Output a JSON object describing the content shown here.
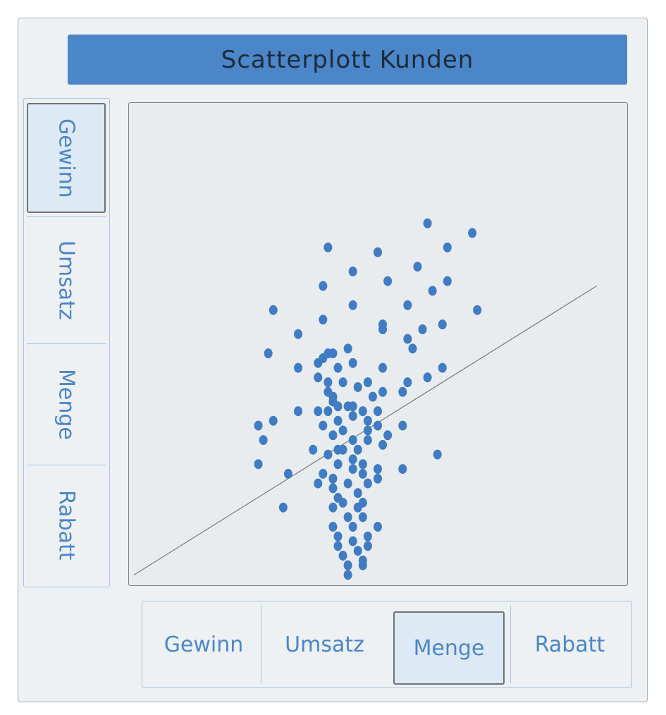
{
  "title": "Scatterplott Kunden",
  "y_selector": {
    "options": [
      "Gewinn",
      "Umsatz",
      "Menge",
      "Rabatt"
    ],
    "selected": "Gewinn"
  },
  "x_selector": {
    "options": [
      "Gewinn",
      "Umsatz",
      "Menge",
      "Rabatt"
    ],
    "selected": "Menge"
  },
  "colors": {
    "accent": "#4a86c8",
    "point": "#3f7cc4",
    "selected_bg": "#dde9f4",
    "plot_bg": "#e9ecef",
    "trend_line": "#7a7a7a"
  },
  "chart_data": {
    "type": "scatter",
    "title": "",
    "xlabel": "Menge",
    "ylabel": "Gewinn",
    "xlim": [
      0,
      100
    ],
    "ylim": [
      0,
      100
    ],
    "grid": false,
    "points": [
      [
        60,
        75
      ],
      [
        69,
        73
      ],
      [
        40,
        70
      ],
      [
        50,
        69
      ],
      [
        64,
        70
      ],
      [
        45,
        65
      ],
      [
        58,
        66
      ],
      [
        52,
        63
      ],
      [
        64,
        63
      ],
      [
        39,
        62
      ],
      [
        61,
        61
      ],
      [
        29,
        57
      ],
      [
        45,
        58
      ],
      [
        56,
        58
      ],
      [
        70,
        57
      ],
      [
        39,
        55
      ],
      [
        51,
        54
      ],
      [
        51,
        53
      ],
      [
        63,
        54
      ],
      [
        59,
        53
      ],
      [
        34,
        52
      ],
      [
        56,
        51
      ],
      [
        57,
        49
      ],
      [
        28,
        48
      ],
      [
        44,
        49
      ],
      [
        41,
        48
      ],
      [
        40,
        48
      ],
      [
        39,
        47
      ],
      [
        38,
        46
      ],
      [
        45,
        46
      ],
      [
        42,
        45
      ],
      [
        51,
        45
      ],
      [
        63,
        45
      ],
      [
        34,
        45
      ],
      [
        38,
        43
      ],
      [
        60,
        43
      ],
      [
        40,
        42
      ],
      [
        43,
        42
      ],
      [
        48,
        42
      ],
      [
        56,
        42
      ],
      [
        46,
        41
      ],
      [
        40,
        40
      ],
      [
        51,
        40
      ],
      [
        41,
        39
      ],
      [
        41,
        38
      ],
      [
        55,
        40
      ],
      [
        49,
        39
      ],
      [
        42,
        37
      ],
      [
        45,
        37
      ],
      [
        44,
        37
      ],
      [
        34,
        36
      ],
      [
        38,
        36
      ],
      [
        40,
        36
      ],
      [
        47,
        36
      ],
      [
        50,
        36
      ],
      [
        29,
        34
      ],
      [
        26,
        33
      ],
      [
        45,
        35
      ],
      [
        48,
        34
      ],
      [
        42,
        34
      ],
      [
        39,
        33
      ],
      [
        50,
        33
      ],
      [
        55,
        33
      ],
      [
        43,
        32
      ],
      [
        27,
        30
      ],
      [
        48,
        32
      ],
      [
        41,
        31
      ],
      [
        52,
        31
      ],
      [
        45,
        30
      ],
      [
        48,
        30
      ],
      [
        42,
        28
      ],
      [
        51,
        29
      ],
      [
        37,
        28
      ],
      [
        43,
        28
      ],
      [
        46,
        28
      ],
      [
        40,
        27
      ],
      [
        45,
        26
      ],
      [
        47,
        25
      ],
      [
        26,
        25
      ],
      [
        62,
        27
      ],
      [
        42,
        25
      ],
      [
        50,
        24
      ],
      [
        55,
        24
      ],
      [
        32,
        23
      ],
      [
        45,
        24
      ],
      [
        39,
        23
      ],
      [
        47,
        23
      ],
      [
        50,
        22
      ],
      [
        41,
        22
      ],
      [
        38,
        21
      ],
      [
        44,
        21
      ],
      [
        48,
        21
      ],
      [
        41,
        20
      ],
      [
        46,
        19
      ],
      [
        42,
        18
      ],
      [
        47,
        17
      ],
      [
        31,
        16
      ],
      [
        43,
        17
      ],
      [
        46,
        16
      ],
      [
        41,
        16
      ],
      [
        44,
        14
      ],
      [
        47,
        14
      ],
      [
        41,
        12
      ],
      [
        45,
        12
      ],
      [
        50,
        12
      ],
      [
        42,
        10
      ],
      [
        48,
        10
      ],
      [
        45,
        9
      ],
      [
        42,
        8
      ],
      [
        46,
        7
      ],
      [
        48,
        8
      ],
      [
        43,
        6
      ],
      [
        47,
        5
      ],
      [
        44,
        4
      ],
      [
        47,
        4
      ],
      [
        44,
        2
      ]
    ],
    "trend_line": [
      [
        1,
        2
      ],
      [
        94,
        62
      ]
    ]
  }
}
